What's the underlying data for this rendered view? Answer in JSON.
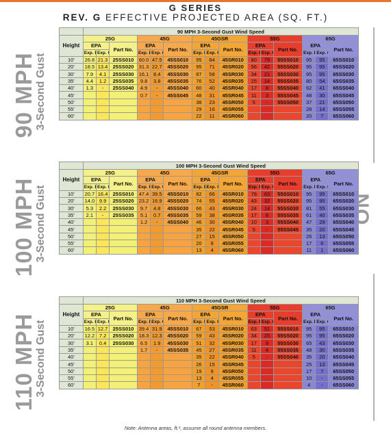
{
  "title_line1": "G SERIES",
  "title_line2_bold": "REV. G",
  "title_line2_rest": " EFFECTIVE PROJECTED AREA (SQ. FT.)",
  "no_ice": "NO ICE",
  "note": "Note: Antenna areas, ft.², assume all round antenna members.",
  "labels": {
    "height": "Height",
    "epa": "EPA",
    "part_no": "Part No.",
    "exp_b": "Exp. B",
    "exp_c": "Exp. C",
    "g25": "25G",
    "g45": "45G",
    "g45sr": "45GSR",
    "g55": "55G",
    "g65": "65G"
  },
  "sections": [
    {
      "mph": "90 MPH",
      "gust": "3-Second Gust",
      "header": "90 MPH 3-Second Gust Wind Speed",
      "rows": [
        [
          "10'",
          "26.8",
          "21.3",
          "25SS010",
          "60.0",
          "47.5",
          "45SS010",
          "95",
          "84",
          "45SR010",
          "80",
          "79",
          "55SS010",
          "95",
          "95",
          "65SS010"
        ],
        [
          "20'",
          "18.5",
          "13.4",
          "25SS020",
          "31.3",
          "22.7",
          "45SS020",
          "95",
          "71",
          "45SR020",
          "56",
          "42",
          "55SS020",
          "95",
          "95",
          "65SS020"
        ],
        [
          "30'",
          "7.9",
          "4.1",
          "25SS030",
          "16.1",
          "8.4",
          "45SS030",
          "87",
          "58",
          "45SR030",
          "34",
          "21",
          "55SS030",
          "95",
          "95",
          "65SS030"
        ],
        [
          "35'",
          "4.4",
          "1.2",
          "25SS035",
          "9.8",
          "3.8",
          "45SS035",
          "76",
          "52",
          "45SR035",
          "25",
          "14",
          "55SS035",
          "80",
          "54",
          "65SS035"
        ],
        [
          "40'",
          "1.3",
          "-",
          "25SS040",
          "4.9",
          "-",
          "45SS040",
          "60",
          "40",
          "45SR040",
          "17",
          "8",
          "55SS040",
          "62",
          "41",
          "65SS040"
        ],
        [
          "45'",
          "",
          "",
          "",
          "0.7",
          "-",
          "45SS045",
          "48",
          "31",
          "45SR045",
          "11",
          "3",
          "55SS045",
          "48",
          "30",
          "65SS045"
        ],
        [
          "50'",
          "",
          "",
          "",
          "",
          "",
          "",
          "38",
          "23",
          "45SR050",
          "5",
          "-",
          "55SS050",
          "37",
          "21",
          "65SS050"
        ],
        [
          "55'",
          "",
          "",
          "",
          "",
          "",
          "",
          "29",
          "16",
          "45SR055",
          "",
          "",
          "",
          "28",
          "14",
          "65SS055"
        ],
        [
          "60'",
          "",
          "",
          "",
          "",
          "",
          "",
          "22",
          "11",
          "45SR060",
          "",
          "",
          "",
          "20",
          "7",
          "65SS060"
        ]
      ]
    },
    {
      "mph": "100 MPH",
      "gust": "3-Second Gust",
      "header": "100 MPH 3-Second Gust Wind Speed",
      "rows": [
        [
          "10'",
          "20.7",
          "16.4",
          "25SS010",
          "47.4",
          "39.5",
          "45SS010",
          "82",
          "66",
          "45SR010",
          "78",
          "63",
          "55SS010",
          "95",
          "95",
          "65SS010"
        ],
        [
          "20'",
          "14.0",
          "9.9",
          "25SS020",
          "23.2",
          "16.9",
          "45SS020",
          "74",
          "55",
          "45SR020",
          "43",
          "32",
          "55SS020",
          "95",
          "95",
          "65SS020"
        ],
        [
          "30'",
          "5.3",
          "2.2",
          "25SS030",
          "9.7",
          "4.8",
          "45SS030",
          "66",
          "43",
          "45SR030",
          "24",
          "14",
          "55SS030",
          "81",
          "55",
          "65SS030"
        ],
        [
          "35'",
          "2.1",
          "-",
          "25SS035",
          "5.1",
          "0.7",
          "45SS035",
          "59",
          "38",
          "45SR035",
          "17",
          "8",
          "55SS035",
          "61",
          "40",
          "65SS035"
        ],
        [
          "40'",
          "",
          "",
          "",
          "1.2",
          "-",
          "45SS040",
          "46",
          "30",
          "45SR040",
          "10",
          "3",
          "55SS040",
          "47",
          "29",
          "65SS040"
        ],
        [
          "45'",
          "",
          "",
          "",
          "",
          "",
          "",
          "35",
          "22",
          "45SR045",
          "5",
          "-",
          "55SS045",
          "35",
          "20",
          "65SS045"
        ],
        [
          "50'",
          "",
          "",
          "",
          "",
          "",
          "",
          "27",
          "15",
          "45SR050",
          "",
          "",
          "",
          "26",
          "13",
          "65SS050"
        ],
        [
          "55'",
          "",
          "",
          "",
          "",
          "",
          "",
          "20",
          "9",
          "45SR055",
          "",
          "",
          "",
          "17",
          "6",
          "65SS055"
        ],
        [
          "60'",
          "",
          "",
          "",
          "",
          "",
          "",
          "13",
          "4",
          "45SR060",
          "",
          "",
          "",
          "11",
          "1",
          "65SS060"
        ]
      ]
    },
    {
      "mph": "110 MPH",
      "gust": "3-Second Gust",
      "header": "110 MPH 3-Second Gust Wind Speed",
      "rows": [
        [
          "10'",
          "16.5",
          "12.7",
          "25SS010",
          "39.4",
          "31.9",
          "45SS010",
          "67",
          "53",
          "45SR010",
          "63",
          "51",
          "55SS010",
          "95",
          "95",
          "65SS010"
        ],
        [
          "20'",
          "7.2",
          "25SS020",
          "",
          "18.3",
          "12.3",
          "45SS020",
          "59",
          "43",
          "45SR020",
          "34",
          "25",
          "55SS020",
          "95",
          "95",
          "65SS020"
        ],
        [
          "30'",
          "3.1",
          "0.4",
          "25SS030",
          "6.5",
          "1.9",
          "45SS030",
          "51",
          "32",
          "45SR030",
          "17",
          "9",
          "55SS030",
          "65",
          "43",
          "65SS030"
        ],
        [
          "35'",
          "",
          "",
          "",
          "1.7",
          "-",
          "45SS035",
          "45",
          "27",
          "45SR035",
          "11",
          "4",
          "55SS035",
          "48",
          "30",
          "65SS035"
        ],
        [
          "40'",
          "",
          "",
          "",
          "",
          "",
          "",
          "35",
          "22",
          "45SR040",
          "5",
          "-",
          "55SS040",
          "35",
          "20",
          "65SS040"
        ],
        [
          "45'",
          "",
          "",
          "",
          "",
          "",
          "",
          "26",
          "15",
          "45SR045",
          "",
          "",
          "",
          "25",
          "13",
          "65SS045"
        ],
        [
          "50'",
          "",
          "",
          "",
          "",
          "",
          "",
          "19",
          "9",
          "45SR050",
          "",
          "",
          "",
          "17",
          "7",
          "65SS050"
        ],
        [
          "55'",
          "",
          "",
          "",
          "",
          "",
          "",
          "13",
          "4",
          "45SR055",
          "",
          "",
          "",
          "10",
          "-",
          "65SS055"
        ],
        [
          "60'",
          "",
          "",
          "",
          "",
          "",
          "",
          "7",
          "-",
          "45SR060",
          "",
          "",
          "",
          "4",
          "-",
          "65SS060"
        ]
      ]
    }
  ]
}
